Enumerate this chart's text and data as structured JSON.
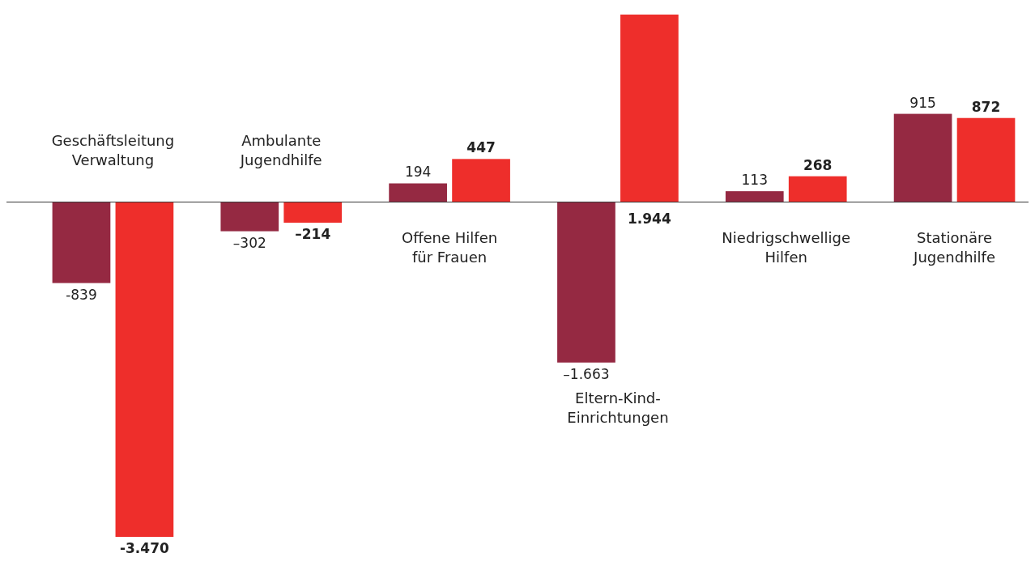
{
  "chart_data": {
    "type": "bar",
    "categories": [
      "Geschäftsleitung\nVerwaltung",
      "Ambulante\nJugendhilfe",
      "Offene Hilfen\nfür Frauen",
      "Eltern-Kind-\nEinrichtungen",
      "Niedrigschwellige\nHilfen",
      "Stationäre\nJugendhilfe"
    ],
    "series": [
      {
        "color": "#952942",
        "values": [
          -839,
          -302,
          194,
          -1663,
          113,
          915
        ],
        "value_labels": [
          "-839",
          "–302",
          "194",
          "–1.663",
          "113",
          "915"
        ]
      },
      {
        "color": "#ee2e2b",
        "values": [
          -3470,
          -214,
          447,
          1944,
          268,
          872
        ],
        "value_labels": [
          "-3.470",
          "–214",
          "447",
          "1.944",
          "268",
          "872"
        ]
      }
    ]
  }
}
